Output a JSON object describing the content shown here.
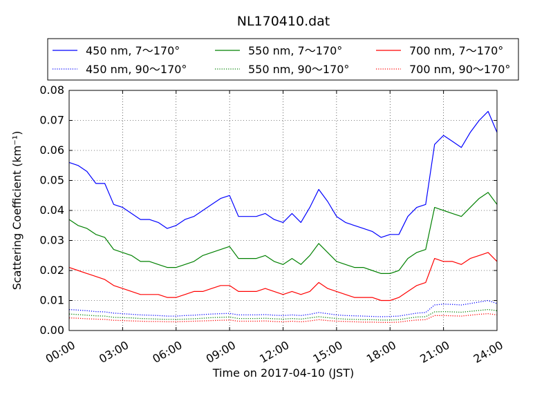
{
  "chart_data": {
    "type": "line",
    "title": "NL170410.dat",
    "xlabel": "Time on 2017-04-10 (JST)",
    "ylabel": "Scattering Coefficient (km⁻¹)",
    "xlim": [
      "00:00",
      "24:00"
    ],
    "ylim": [
      0,
      0.08
    ],
    "grid": true,
    "legend_position": "top, above plot",
    "x_ticks": [
      "00:00",
      "03:00",
      "06:00",
      "09:00",
      "12:00",
      "15:00",
      "18:00",
      "21:00",
      "24:00"
    ],
    "y_ticks": [
      "0.00",
      "0.01",
      "0.02",
      "0.03",
      "0.04",
      "0.05",
      "0.06",
      "0.07",
      "0.08"
    ],
    "x": [
      "00:00",
      "00:30",
      "01:00",
      "01:30",
      "02:00",
      "02:30",
      "03:00",
      "03:30",
      "04:00",
      "04:30",
      "05:00",
      "05:30",
      "06:00",
      "06:30",
      "07:00",
      "07:30",
      "08:00",
      "08:30",
      "09:00",
      "09:30",
      "10:00",
      "10:30",
      "11:00",
      "11:30",
      "12:00",
      "12:30",
      "13:00",
      "13:30",
      "14:00",
      "14:30",
      "15:00",
      "15:30",
      "16:00",
      "16:30",
      "17:00",
      "17:30",
      "18:00",
      "18:30",
      "19:00",
      "19:30",
      "20:00",
      "20:30",
      "21:00",
      "21:30",
      "22:00",
      "22:30",
      "23:00",
      "23:30",
      "24:00"
    ],
    "series": [
      {
        "name": "450 nm, 7～170°",
        "color": "#0000ff",
        "style": "solid",
        "values": [
          0.056,
          0.055,
          0.053,
          0.049,
          0.049,
          0.042,
          0.041,
          0.039,
          0.037,
          0.037,
          0.036,
          0.034,
          0.035,
          0.037,
          0.038,
          0.04,
          0.042,
          0.044,
          0.045,
          0.038,
          0.038,
          0.038,
          0.039,
          0.037,
          0.036,
          0.039,
          0.036,
          0.041,
          0.047,
          0.043,
          0.038,
          0.036,
          0.035,
          0.034,
          0.033,
          0.031,
          0.032,
          0.032,
          0.038,
          0.041,
          0.042,
          0.062,
          0.065,
          0.063,
          0.061,
          0.066,
          0.07,
          0.073,
          0.066
        ]
      },
      {
        "name": "450 nm, 90～170°",
        "color": "#0000ff",
        "style": "dotted",
        "values": [
          0.007,
          0.0068,
          0.0066,
          0.0063,
          0.0062,
          0.0058,
          0.0056,
          0.0054,
          0.0052,
          0.0051,
          0.005,
          0.0048,
          0.0048,
          0.005,
          0.0051,
          0.0053,
          0.0055,
          0.0056,
          0.0057,
          0.0052,
          0.0052,
          0.0052,
          0.0053,
          0.0051,
          0.005,
          0.0052,
          0.005,
          0.0054,
          0.006,
          0.0056,
          0.0052,
          0.005,
          0.0049,
          0.0048,
          0.0047,
          0.0046,
          0.0047,
          0.0048,
          0.0053,
          0.0058,
          0.006,
          0.0085,
          0.0088,
          0.0087,
          0.0085,
          0.009,
          0.0095,
          0.01,
          0.009
        ]
      },
      {
        "name": "550 nm, 7～170°",
        "color": "#008000",
        "style": "solid",
        "values": [
          0.037,
          0.035,
          0.034,
          0.032,
          0.031,
          0.027,
          0.026,
          0.025,
          0.023,
          0.023,
          0.022,
          0.021,
          0.021,
          0.022,
          0.023,
          0.025,
          0.026,
          0.027,
          0.028,
          0.024,
          0.024,
          0.024,
          0.025,
          0.023,
          0.022,
          0.024,
          0.022,
          0.025,
          0.029,
          0.026,
          0.023,
          0.022,
          0.021,
          0.021,
          0.02,
          0.019,
          0.019,
          0.02,
          0.024,
          0.026,
          0.027,
          0.041,
          0.04,
          0.039,
          0.038,
          0.041,
          0.044,
          0.046,
          0.042
        ]
      },
      {
        "name": "550 nm, 90～170°",
        "color": "#008000",
        "style": "dotted",
        "values": [
          0.0055,
          0.0053,
          0.0051,
          0.0049,
          0.0048,
          0.0044,
          0.0043,
          0.0042,
          0.004,
          0.0039,
          0.0038,
          0.0037,
          0.0037,
          0.0038,
          0.0039,
          0.0041,
          0.0043,
          0.0044,
          0.0045,
          0.004,
          0.004,
          0.004,
          0.0041,
          0.0039,
          0.0038,
          0.004,
          0.0038,
          0.0042,
          0.0046,
          0.0043,
          0.004,
          0.0038,
          0.0037,
          0.0036,
          0.0036,
          0.0035,
          0.0035,
          0.0036,
          0.0041,
          0.0045,
          0.0046,
          0.0062,
          0.0063,
          0.0062,
          0.0061,
          0.0064,
          0.0067,
          0.007,
          0.0066
        ]
      },
      {
        "name": "700 nm, 7～170°",
        "color": "#ff0000",
        "style": "solid",
        "values": [
          0.021,
          0.02,
          0.019,
          0.018,
          0.017,
          0.015,
          0.014,
          0.013,
          0.012,
          0.012,
          0.012,
          0.011,
          0.011,
          0.012,
          0.013,
          0.013,
          0.014,
          0.015,
          0.015,
          0.013,
          0.013,
          0.013,
          0.014,
          0.013,
          0.012,
          0.013,
          0.012,
          0.013,
          0.016,
          0.014,
          0.013,
          0.012,
          0.011,
          0.011,
          0.011,
          0.01,
          0.01,
          0.011,
          0.013,
          0.015,
          0.016,
          0.024,
          0.023,
          0.023,
          0.022,
          0.024,
          0.025,
          0.026,
          0.023
        ]
      },
      {
        "name": "700 nm, 90～170°",
        "color": "#ff0000",
        "style": "dotted",
        "values": [
          0.0042,
          0.0041,
          0.0039,
          0.0038,
          0.0037,
          0.0034,
          0.0033,
          0.0032,
          0.0031,
          0.003,
          0.003,
          0.0029,
          0.0029,
          0.003,
          0.0031,
          0.0032,
          0.0033,
          0.0034,
          0.0035,
          0.0031,
          0.0031,
          0.0031,
          0.0032,
          0.003,
          0.0029,
          0.0031,
          0.0029,
          0.0032,
          0.0036,
          0.0033,
          0.0031,
          0.003,
          0.0029,
          0.0028,
          0.0028,
          0.0027,
          0.0027,
          0.0028,
          0.0032,
          0.0035,
          0.0036,
          0.005,
          0.005,
          0.0049,
          0.0048,
          0.0051,
          0.0054,
          0.0056,
          0.0052
        ]
      }
    ]
  }
}
